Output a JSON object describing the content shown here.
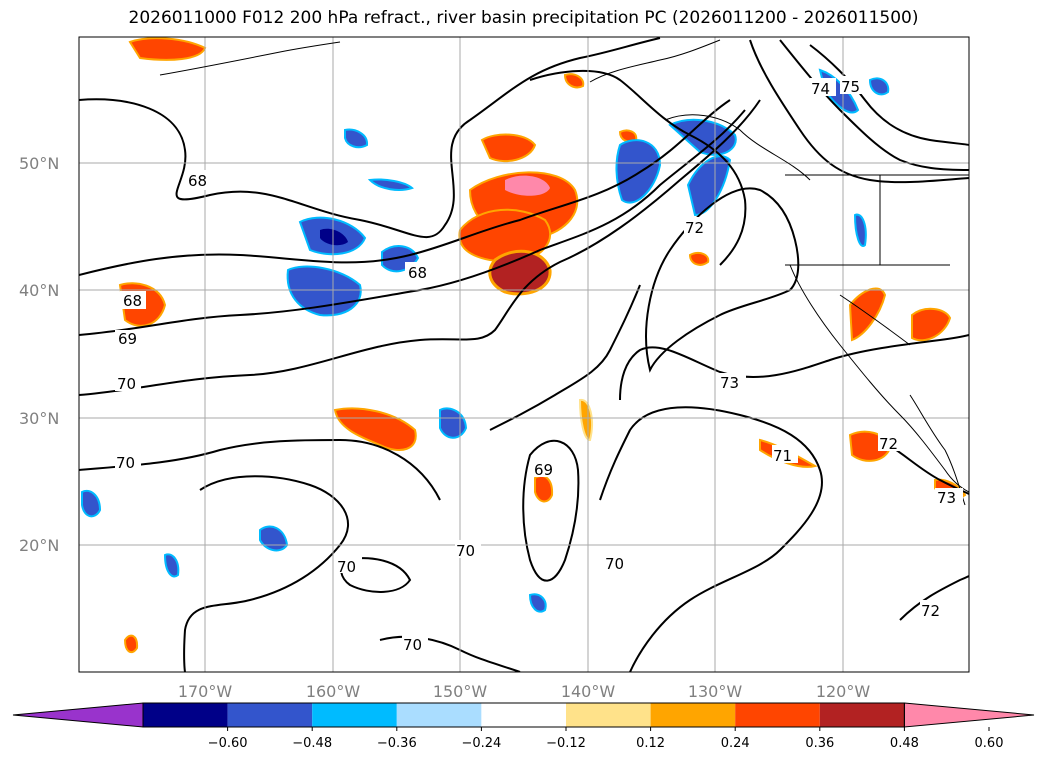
{
  "title": "2026011000 F012 200 hPa refract., river basin precipitation PC (2026011200 - 2026011500)",
  "lat_labels": [
    "50°N",
    "40°N",
    "30°N",
    "20°N"
  ],
  "lon_labels": [
    "170°W",
    "160°W",
    "150°W",
    "140°W",
    "130°W",
    "120°W"
  ],
  "contour_labels": [
    "68",
    "68",
    "68",
    "69",
    "70",
    "70",
    "70",
    "70",
    "70",
    "70",
    "69",
    "71",
    "72",
    "73",
    "72",
    "73",
    "72",
    "74",
    "75"
  ],
  "colorbar": {
    "ticks": [
      "−0.60",
      "−0.48",
      "−0.36",
      "−0.24",
      "−0.12",
      "0.12",
      "0.24",
      "0.36",
      "0.48",
      "0.60"
    ],
    "colors": [
      "#9933cc",
      "#000088",
      "#3355cc",
      "#00bbff",
      "#aaddff",
      "#ffffff",
      "#ffe28a",
      "#ffa500",
      "#ff4500",
      "#b22222",
      "#ff88aa"
    ]
  },
  "colors": {
    "negative_fill": "#3355cc",
    "positive_fill": "#ff4500",
    "contour": "#000000",
    "grid": "#aaaaaa"
  }
}
